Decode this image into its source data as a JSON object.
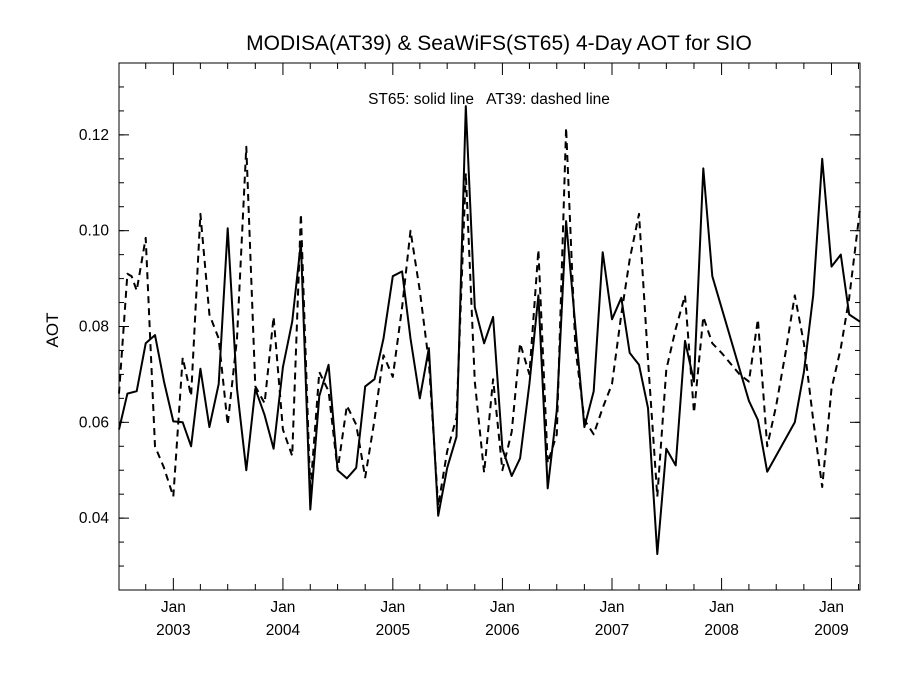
{
  "chart_data": {
    "type": "line",
    "title": "MODISA(AT39) & SeaWiFS(ST65) 4-Day AOT for SIO",
    "annotation": "ST65: solid line   AT39: dashed line",
    "xlabel": "",
    "ylabel": "AOT",
    "xlim": [
      "2002-07-04",
      "2009-04-06"
    ],
    "ylim": [
      0.025,
      0.135
    ],
    "grid": false,
    "y_ticks": [
      {
        "value": 0.04,
        "label": "0.04"
      },
      {
        "value": 0.06,
        "label": "0.06"
      },
      {
        "value": 0.08,
        "label": "0.08"
      },
      {
        "value": 0.1,
        "label": "0.10"
      },
      {
        "value": 0.12,
        "label": "0.12"
      }
    ],
    "x_ticks": [
      {
        "value": "2003-01-01",
        "month": "Jan",
        "year": "2003"
      },
      {
        "value": "2004-01-01",
        "month": "Jan",
        "year": "2004"
      },
      {
        "value": "2005-01-01",
        "month": "Jan",
        "year": "2005"
      },
      {
        "value": "2006-01-01",
        "month": "Jan",
        "year": "2006"
      },
      {
        "value": "2007-01-01",
        "month": "Jan",
        "year": "2007"
      },
      {
        "value": "2008-01-01",
        "month": "Jan",
        "year": "2008"
      },
      {
        "value": "2009-01-01",
        "month": "Jan",
        "year": "2009"
      }
    ],
    "series": [
      {
        "name": "ST65",
        "style": "solid",
        "color": "#000000",
        "points": [
          [
            "2002-07-04",
            0.0585
          ],
          [
            "2002-08-01",
            0.066
          ],
          [
            "2002-09-01",
            0.0665
          ],
          [
            "2002-10-01",
            0.0765
          ],
          [
            "2002-11-01",
            0.0782
          ],
          [
            "2002-12-01",
            0.0685
          ],
          [
            "2003-01-01",
            0.0602
          ],
          [
            "2003-02-01",
            0.06
          ],
          [
            "2003-03-01",
            0.055
          ],
          [
            "2003-04-01",
            0.0712
          ],
          [
            "2003-05-01",
            0.059
          ],
          [
            "2003-06-01",
            0.068
          ],
          [
            "2003-07-01",
            0.1005
          ],
          [
            "2003-08-01",
            0.067
          ],
          [
            "2003-09-01",
            0.05
          ],
          [
            "2003-10-01",
            0.067
          ],
          [
            "2003-11-01",
            0.0615
          ],
          [
            "2003-12-01",
            0.0545
          ],
          [
            "2004-01-01",
            0.0715
          ],
          [
            "2004-02-01",
            0.081
          ],
          [
            "2004-03-01",
            0.0975
          ],
          [
            "2004-04-01",
            0.0418
          ],
          [
            "2004-05-01",
            0.0655
          ],
          [
            "2004-06-01",
            0.072
          ],
          [
            "2004-07-01",
            0.05
          ],
          [
            "2004-08-01",
            0.0483
          ],
          [
            "2004-09-01",
            0.0505
          ],
          [
            "2004-10-01",
            0.0675
          ],
          [
            "2004-11-01",
            0.069
          ],
          [
            "2004-12-01",
            0.0775
          ],
          [
            "2005-01-01",
            0.0905
          ],
          [
            "2005-02-01",
            0.0915
          ],
          [
            "2005-03-01",
            0.0775
          ],
          [
            "2005-04-01",
            0.065
          ],
          [
            "2005-05-01",
            0.0755
          ],
          [
            "2005-06-01",
            0.0405
          ],
          [
            "2005-07-01",
            0.0505
          ],
          [
            "2005-08-01",
            0.057
          ],
          [
            "2005-09-01",
            0.126
          ],
          [
            "2005-10-01",
            0.084
          ],
          [
            "2005-11-01",
            0.0765
          ],
          [
            "2005-12-01",
            0.082
          ],
          [
            "2006-01-01",
            0.0545
          ],
          [
            "2006-02-01",
            0.0488
          ],
          [
            "2006-03-01",
            0.0525
          ],
          [
            "2006-04-01",
            0.068
          ],
          [
            "2006-05-01",
            0.0865
          ],
          [
            "2006-06-01",
            0.0462
          ],
          [
            "2006-07-01",
            0.0625
          ],
          [
            "2006-08-01",
            0.102
          ],
          [
            "2006-09-01",
            0.08
          ],
          [
            "2006-10-01",
            0.059
          ],
          [
            "2006-11-01",
            0.0665
          ],
          [
            "2006-12-01",
            0.0955
          ],
          [
            "2007-01-01",
            0.0815
          ],
          [
            "2007-02-01",
            0.086
          ],
          [
            "2007-03-01",
            0.0745
          ],
          [
            "2007-04-01",
            0.072
          ],
          [
            "2007-05-01",
            0.063
          ],
          [
            "2007-06-01",
            0.0325
          ],
          [
            "2007-07-01",
            0.0545
          ],
          [
            "2007-08-01",
            0.051
          ],
          [
            "2007-09-01",
            0.077
          ],
          [
            "2007-10-01",
            0.0685
          ],
          [
            "2007-11-01",
            0.113
          ],
          [
            "2007-12-01",
            0.0905
          ],
          [
            "2008-04-01",
            0.0645
          ],
          [
            "2008-05-01",
            0.0605
          ],
          [
            "2008-06-01",
            0.0497
          ],
          [
            "2008-09-01",
            0.06
          ],
          [
            "2008-10-01",
            0.0705
          ],
          [
            "2008-11-01",
            0.0865
          ],
          [
            "2008-12-01",
            0.115
          ],
          [
            "2009-01-01",
            0.0925
          ],
          [
            "2009-02-01",
            0.095
          ],
          [
            "2009-03-01",
            0.0825
          ],
          [
            "2009-04-06",
            0.081
          ]
        ]
      },
      {
        "name": "AT39",
        "style": "dashed",
        "color": "#000000",
        "points": [
          [
            "2002-07-04",
            0.066
          ],
          [
            "2002-08-01",
            0.091
          ],
          [
            "2002-08-15",
            0.0905
          ],
          [
            "2002-09-01",
            0.0875
          ],
          [
            "2002-10-01",
            0.0985
          ],
          [
            "2002-11-01",
            0.055
          ],
          [
            "2002-12-01",
            0.0505
          ],
          [
            "2003-01-01",
            0.0445
          ],
          [
            "2003-02-01",
            0.0735
          ],
          [
            "2003-03-01",
            0.0655
          ],
          [
            "2003-04-01",
            0.1035
          ],
          [
            "2003-05-01",
            0.0825
          ],
          [
            "2003-06-01",
            0.0775
          ],
          [
            "2003-07-01",
            0.0595
          ],
          [
            "2003-08-01",
            0.0775
          ],
          [
            "2003-09-01",
            0.1175
          ],
          [
            "2003-10-01",
            0.0675
          ],
          [
            "2003-11-01",
            0.064
          ],
          [
            "2003-12-01",
            0.082
          ],
          [
            "2004-01-01",
            0.0585
          ],
          [
            "2004-02-01",
            0.053
          ],
          [
            "2004-03-01",
            0.1035
          ],
          [
            "2004-04-01",
            0.0455
          ],
          [
            "2004-05-01",
            0.0705
          ],
          [
            "2004-06-01",
            0.0665
          ],
          [
            "2004-07-01",
            0.05
          ],
          [
            "2004-08-01",
            0.0635
          ],
          [
            "2004-09-01",
            0.0595
          ],
          [
            "2004-10-01",
            0.0485
          ],
          [
            "2004-11-01",
            0.0605
          ],
          [
            "2004-12-01",
            0.074
          ],
          [
            "2005-01-01",
            0.0695
          ],
          [
            "2005-02-01",
            0.084
          ],
          [
            "2005-03-01",
            0.1
          ],
          [
            "2005-04-01",
            0.0875
          ],
          [
            "2005-05-01",
            0.0725
          ],
          [
            "2005-06-01",
            0.0425
          ],
          [
            "2005-07-01",
            0.054
          ],
          [
            "2005-08-01",
            0.061
          ],
          [
            "2005-09-01",
            0.112
          ],
          [
            "2005-10-01",
            0.0685
          ],
          [
            "2005-11-01",
            0.0495
          ],
          [
            "2005-12-01",
            0.069
          ],
          [
            "2006-01-01",
            0.05
          ],
          [
            "2006-02-01",
            0.058
          ],
          [
            "2006-03-01",
            0.0765
          ],
          [
            "2006-04-01",
            0.07
          ],
          [
            "2006-05-01",
            0.096
          ],
          [
            "2006-06-01",
            0.0515
          ],
          [
            "2006-07-01",
            0.0575
          ],
          [
            "2006-08-01",
            0.1215
          ],
          [
            "2006-09-01",
            0.0755
          ],
          [
            "2006-10-01",
            0.0605
          ],
          [
            "2006-11-01",
            0.0575
          ],
          [
            "2006-12-01",
            0.063
          ],
          [
            "2007-01-01",
            0.068
          ],
          [
            "2007-02-01",
            0.0825
          ],
          [
            "2007-03-01",
            0.094
          ],
          [
            "2007-04-01",
            0.1035
          ],
          [
            "2007-05-01",
            0.073
          ],
          [
            "2007-06-01",
            0.0445
          ],
          [
            "2007-07-01",
            0.071
          ],
          [
            "2007-08-01",
            0.0795
          ],
          [
            "2007-09-01",
            0.0865
          ],
          [
            "2007-10-01",
            0.062
          ],
          [
            "2007-11-01",
            0.082
          ],
          [
            "2007-12-01",
            0.0765
          ],
          [
            "2008-01-01",
            0.0745
          ],
          [
            "2008-03-01",
            0.07
          ],
          [
            "2008-04-01",
            0.0685
          ],
          [
            "2008-05-01",
            0.0815
          ],
          [
            "2008-06-01",
            0.055
          ],
          [
            "2008-07-01",
            0.0635
          ],
          [
            "2008-08-01",
            0.0745
          ],
          [
            "2008-09-01",
            0.0865
          ],
          [
            "2008-10-01",
            0.0765
          ],
          [
            "2008-11-01",
            0.0605
          ],
          [
            "2008-12-01",
            0.0465
          ],
          [
            "2009-01-01",
            0.067
          ],
          [
            "2009-02-01",
            0.0755
          ],
          [
            "2009-03-01",
            0.086
          ],
          [
            "2009-04-06",
            0.1045
          ]
        ]
      }
    ]
  }
}
